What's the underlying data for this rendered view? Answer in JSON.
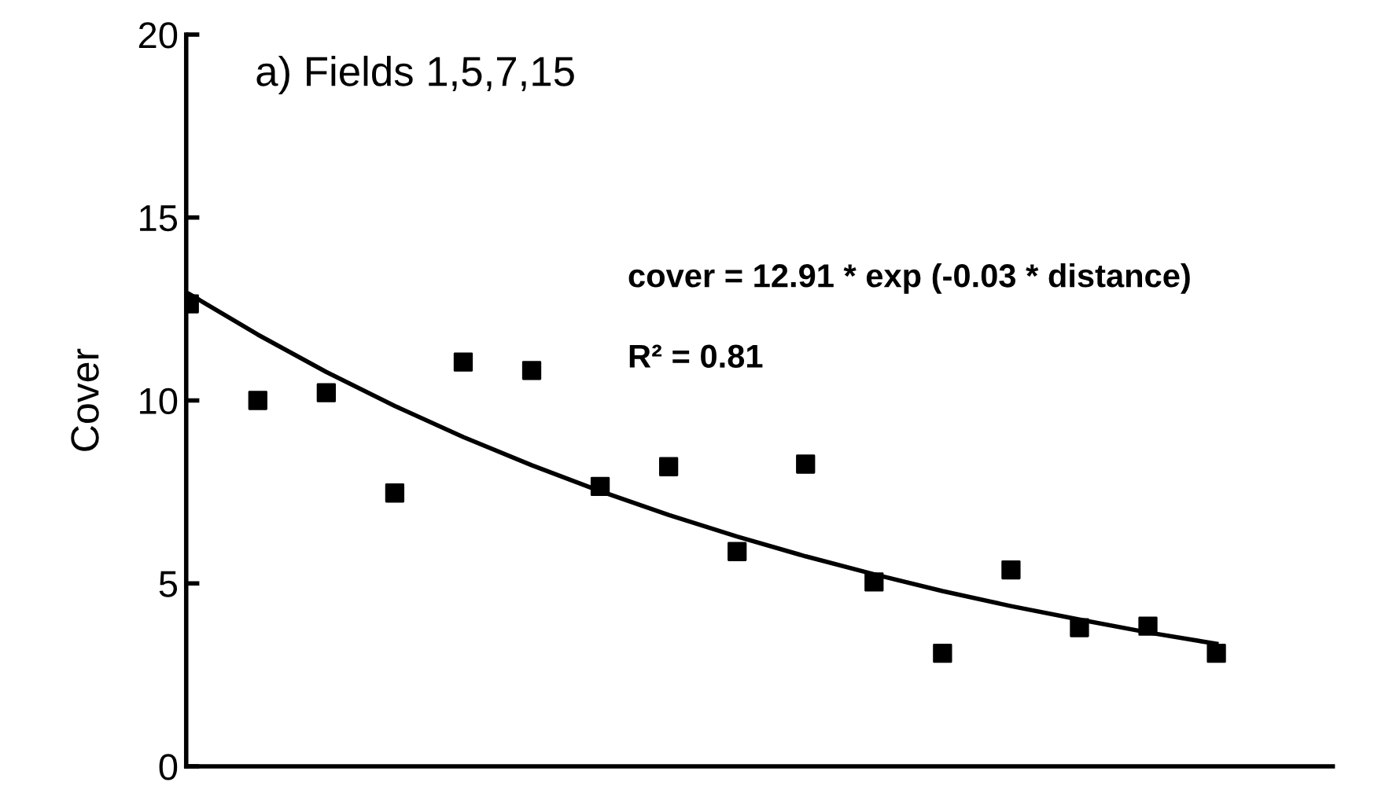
{
  "chart_data": {
    "type": "scatter",
    "title": "a) Fields 1,5,7,15",
    "ylabel": "Cover",
    "categories": [
      null,
      null,
      null,
      null,
      null,
      null,
      null,
      null,
      null,
      null,
      null,
      null,
      null,
      null,
      null,
      null
    ],
    "series": [
      {
        "color": "#000000",
        "marker": "square",
        "values": [
          12.64,
          10.0,
          10.21,
          7.47,
          11.05,
          10.82,
          7.65,
          8.19,
          5.87,
          8.26,
          5.04,
          3.09,
          5.37,
          3.79,
          3.83,
          3.09
        ]
      },
      {
        "type": "line",
        "color": "#000000",
        "line_style": "solid",
        "values": [
          12.91,
          11.8,
          10.78,
          9.85,
          9.0,
          8.23,
          7.52,
          6.87,
          6.28,
          5.74,
          5.25,
          4.79,
          4.38,
          4.01,
          3.66,
          3.35
        ]
      }
    ],
    "annotations": [
      "cover = 12.91 * exp (-0.03 * distance)",
      "R² = 0.81"
    ],
    "ylim": [
      0,
      20
    ],
    "yticks": [
      0,
      5,
      10,
      15,
      20
    ],
    "grid": false,
    "legend": false
  }
}
